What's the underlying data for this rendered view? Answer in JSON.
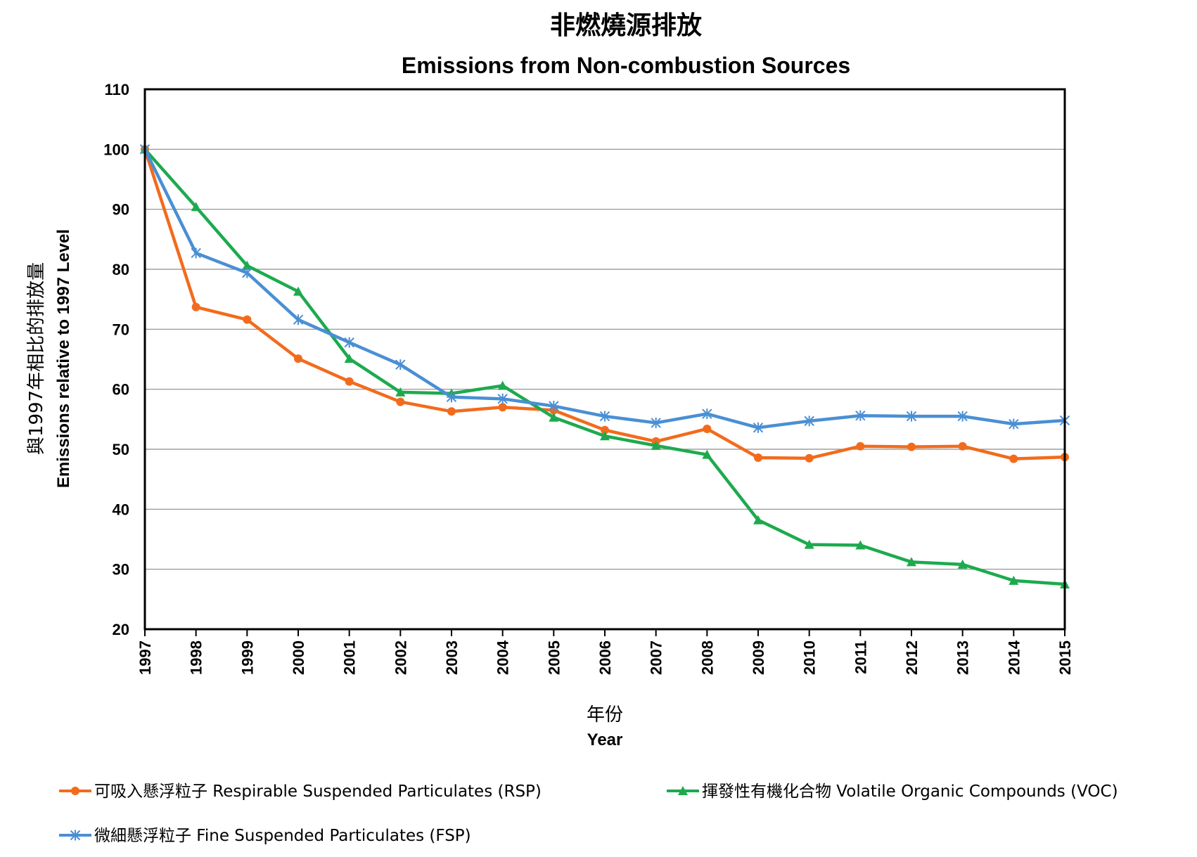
{
  "chart_data": {
    "type": "line",
    "title": "非燃燒源排放",
    "subtitle": "Emissions from Non-combustion Sources",
    "ylabel_cn": "與1997年相比的排放量",
    "ylabel": "Emissions relative to 1997 Level",
    "xlabel_cn": "年份",
    "xlabel": "Year",
    "ylim": [
      20,
      110
    ],
    "yticks": [
      20,
      30,
      40,
      50,
      60,
      70,
      80,
      90,
      100,
      110
    ],
    "grid": true,
    "legend_position": "bottom",
    "x": [
      "1997",
      "1998",
      "1999",
      "2000",
      "2001",
      "2002",
      "2003",
      "2004",
      "2005",
      "2006",
      "2007",
      "2008",
      "2009",
      "2010",
      "2011",
      "2012",
      "2013",
      "2014",
      "2015"
    ],
    "series": [
      {
        "name": "可吸入懸浮粒子 Respirable Suspended Particulates (RSP)",
        "color": "#F26B1D",
        "marker": "circle",
        "values": [
          100,
          73.7,
          71.6,
          65.1,
          61.3,
          57.9,
          56.3,
          57.0,
          56.5,
          53.2,
          51.3,
          53.4,
          48.6,
          48.5,
          50.5,
          50.4,
          50.5,
          48.4,
          48.7
        ]
      },
      {
        "name": "揮發性有機化合物 Volatile Organic Compounds (VOC)",
        "color": "#1DAA4E",
        "marker": "triangle",
        "values": [
          100,
          90.4,
          80.6,
          76.3,
          65.1,
          59.5,
          59.3,
          60.6,
          55.3,
          52.2,
          50.6,
          49.1,
          38.2,
          34.1,
          34.0,
          31.2,
          30.8,
          28.1,
          27.5
        ]
      },
      {
        "name": "微細懸浮粒子 Fine Suspended Particulates (FSP)",
        "color": "#4A8FD4",
        "marker": "star",
        "values": [
          100,
          82.7,
          79.4,
          71.6,
          67.8,
          64.1,
          58.7,
          58.4,
          57.2,
          55.5,
          54.4,
          55.9,
          53.6,
          54.7,
          55.6,
          55.5,
          55.5,
          54.2,
          54.8
        ]
      }
    ]
  }
}
